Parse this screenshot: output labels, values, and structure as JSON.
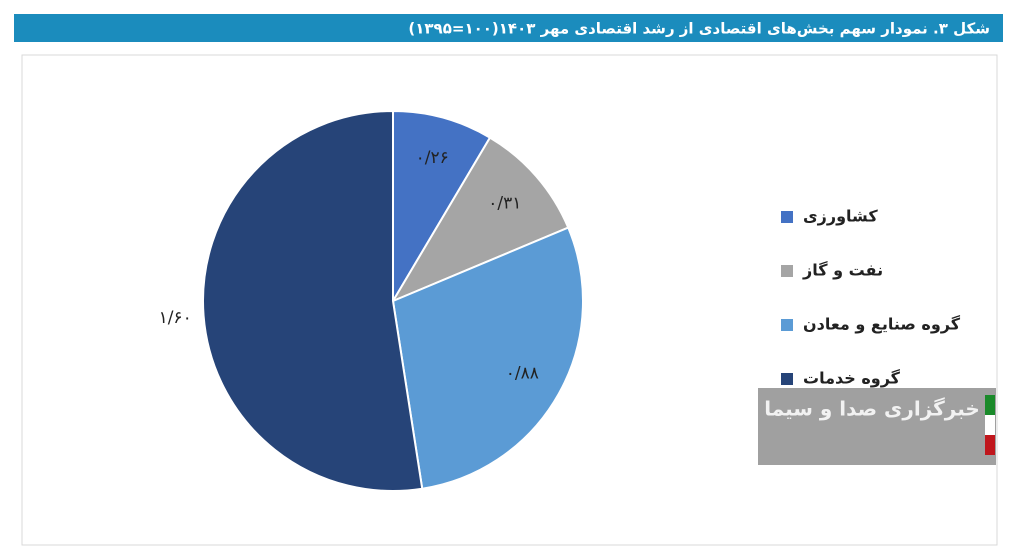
{
  "chart_data": {
    "type": "pie",
    "title": "شکل ۳. نمودار سهم بخش‌های اقتصادی از رشد اقتصادی مهر ۱۴۰۳(۱۰۰=۱۳۹۵)",
    "categories": [
      "کشاورزی",
      "نفت و گاز",
      "گروه صنایع و معادن",
      "گروه خدمات"
    ],
    "values": [
      0.26,
      0.31,
      0.88,
      1.6
    ],
    "value_labels": [
      "۰/۲۶",
      "۰/۳۱",
      "۰/۸۸",
      "۱/۶۰"
    ],
    "colors": [
      "#4472c4",
      "#a5a5a5",
      "#5b9bd5",
      "#264478"
    ],
    "legend": "right"
  },
  "watermark": "خبرگزاری صدا و سیما"
}
